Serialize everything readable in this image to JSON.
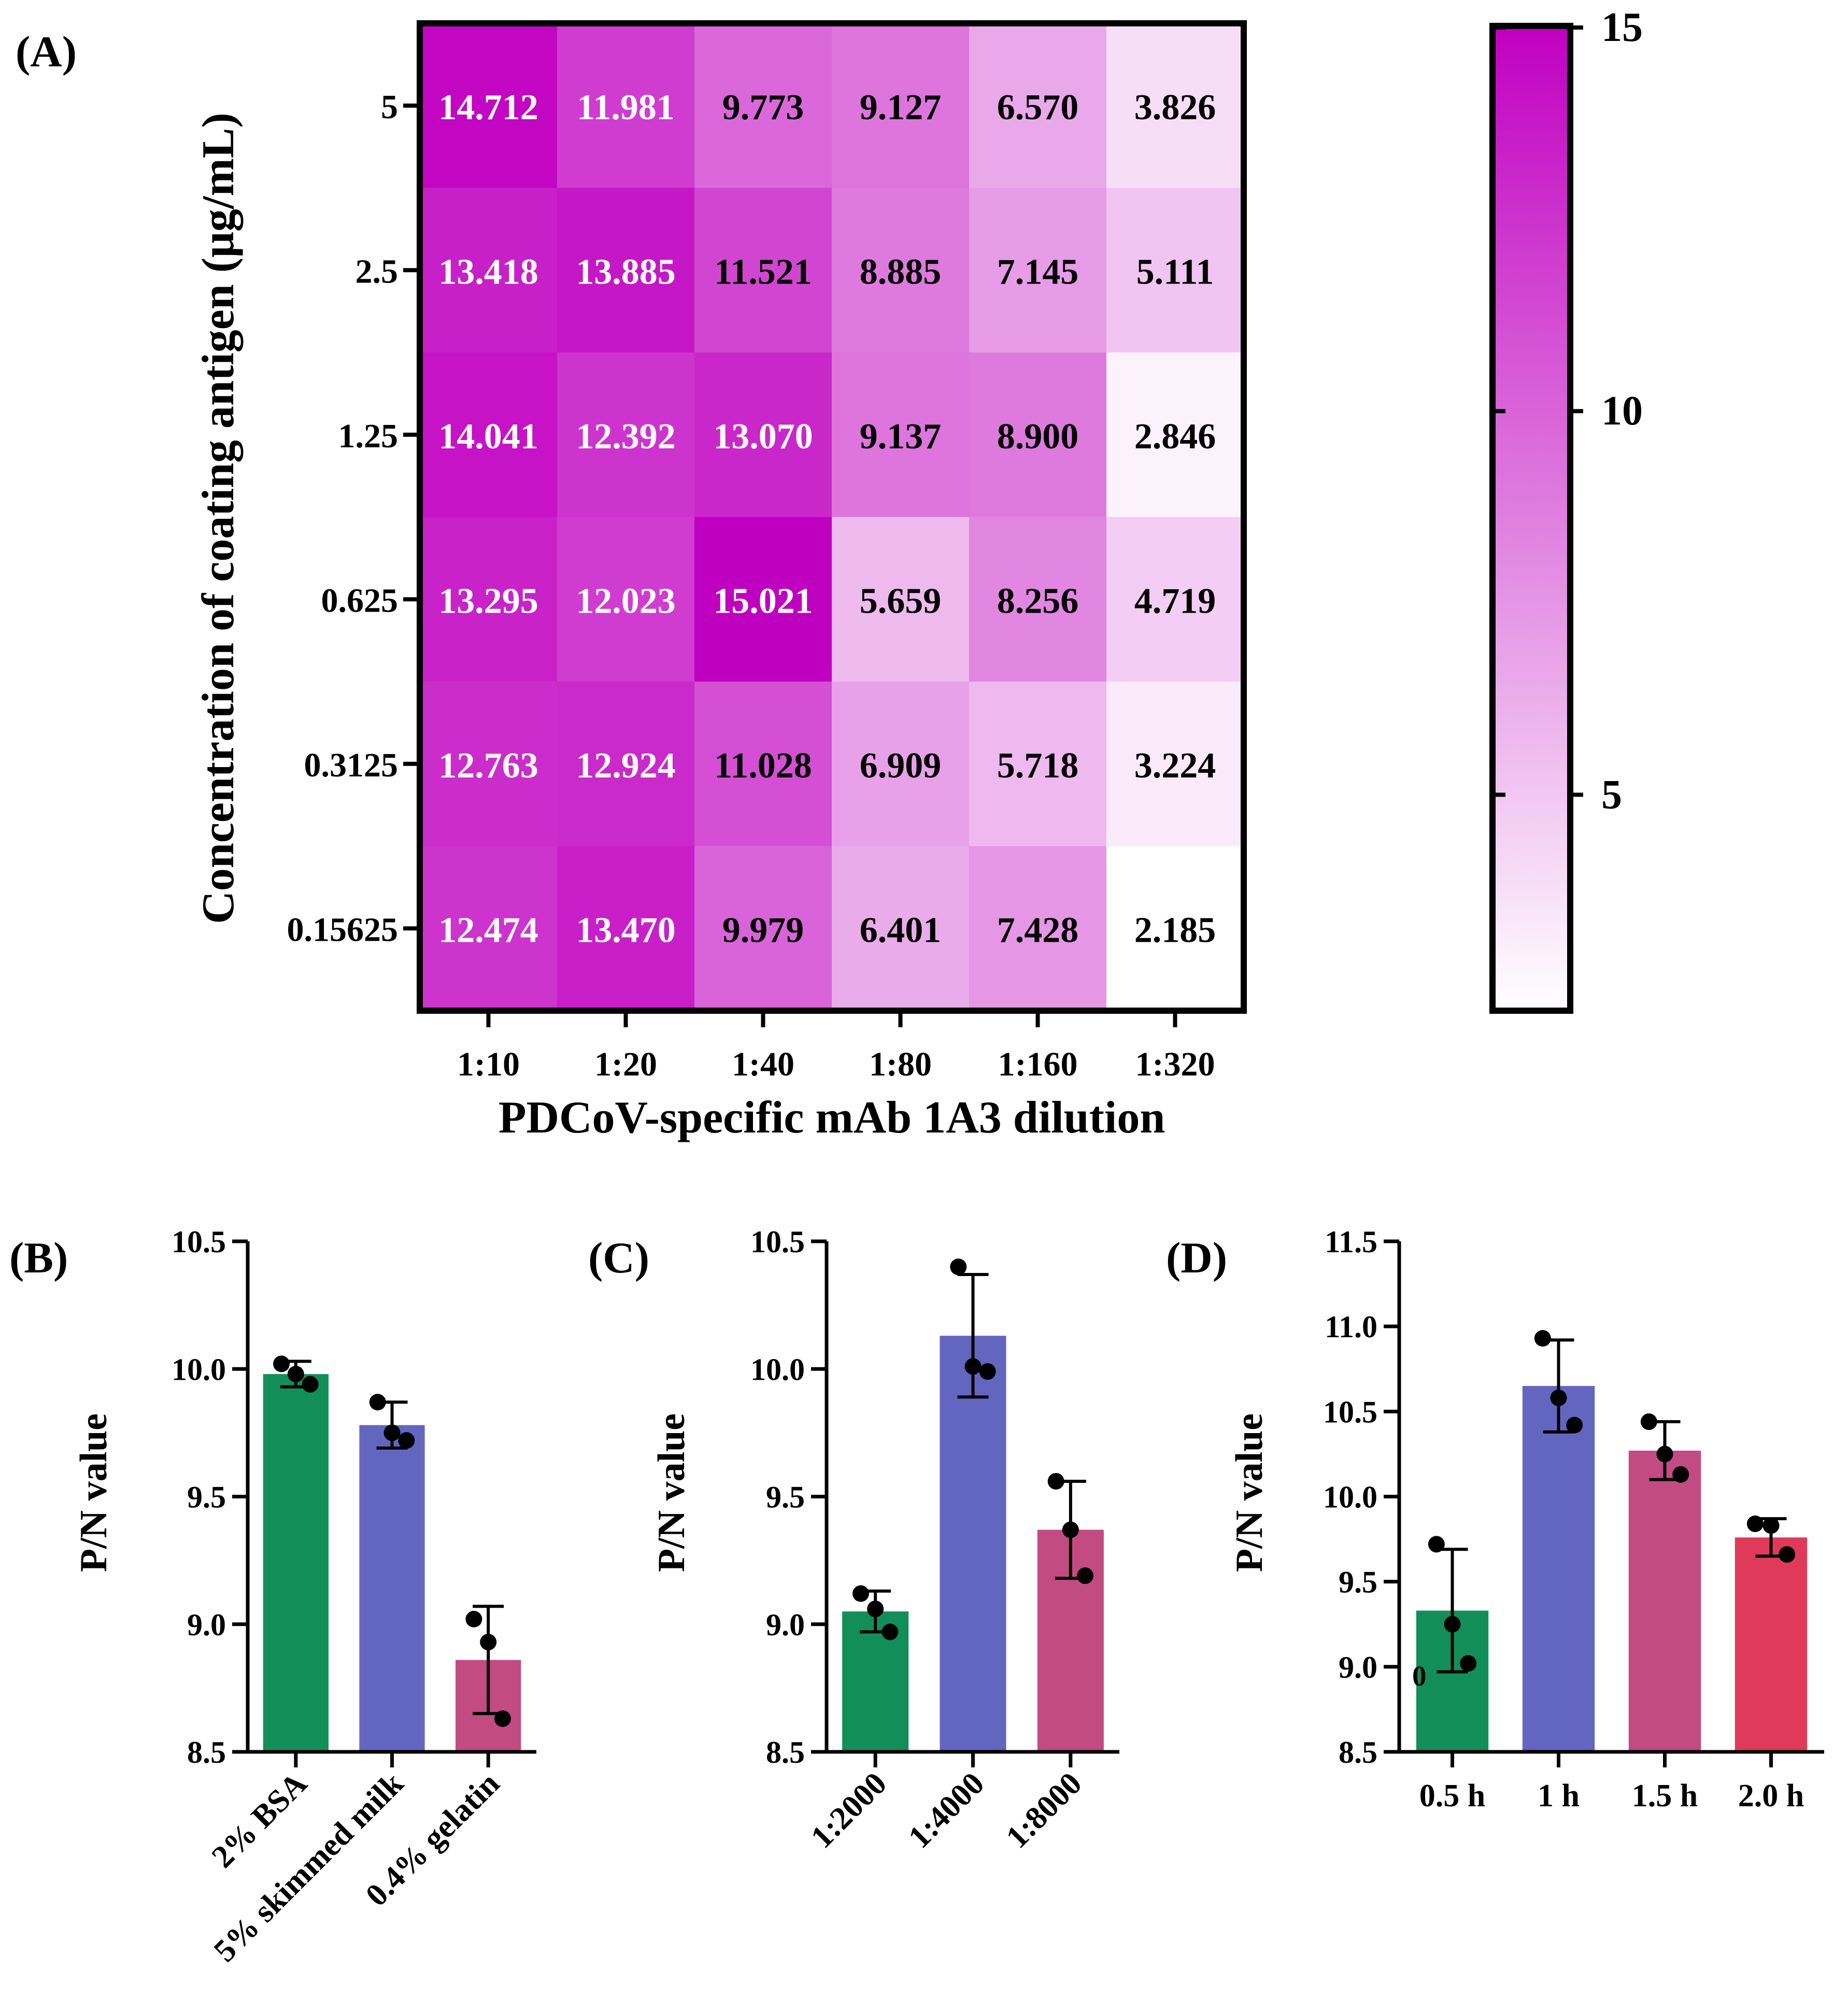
{
  "chart_data": [
    {
      "panel": "(A)",
      "type": "heatmap",
      "title": "",
      "xlabel": "PDCoV-specific mAb 1A3 dilution",
      "ylabel": "Concentration of coating antigen (μg/mL)",
      "x_categories": [
        "1:10",
        "1:20",
        "1:40",
        "1:80",
        "1:160",
        "1:320"
      ],
      "y_categories": [
        "5",
        "2.5",
        "1.25",
        "0.625",
        "0.3125",
        "0.15625"
      ],
      "values": [
        [
          14.712,
          11.981,
          9.773,
          9.127,
          6.57,
          3.826
        ],
        [
          13.418,
          13.885,
          11.521,
          8.885,
          7.145,
          5.111
        ],
        [
          14.041,
          12.392,
          13.07,
          9.137,
          8.9,
          2.846
        ],
        [
          13.295,
          12.023,
          15.021,
          5.659,
          8.256,
          4.719
        ],
        [
          12.763,
          12.924,
          11.028,
          6.909,
          5.718,
          3.224
        ],
        [
          12.474,
          13.47,
          9.979,
          6.401,
          7.428,
          2.185
        ]
      ],
      "value_labels": [
        [
          "14.712",
          "11.981",
          "9.773",
          "9.127",
          "6.570",
          "3.826"
        ],
        [
          "13.418",
          "13.885",
          "11.521",
          "8.885",
          "7.145",
          "5.111"
        ],
        [
          "14.041",
          "12.392",
          "13.070",
          "9.137",
          "8.900",
          "2.846"
        ],
        [
          "13.295",
          "12.023",
          "15.021",
          "5.659",
          "8.256",
          "4.719"
        ],
        [
          "12.763",
          "12.924",
          "11.028",
          "6.909",
          "5.718",
          "3.224"
        ],
        [
          "12.474",
          "13.470",
          "9.979",
          "6.401",
          "7.428",
          "2.185"
        ]
      ],
      "colorbar": {
        "min": 2.185,
        "max": 15.021,
        "ticks": [
          15,
          10,
          5
        ],
        "tick_labels": [
          "15",
          "10",
          "5"
        ],
        "color_low": "#ffffff",
        "color_high": "#c000c0"
      }
    },
    {
      "panel": "(B)",
      "type": "bar",
      "ylabel": "P/N value",
      "ylim": [
        8.5,
        10.5
      ],
      "yticks": [
        8.5,
        9.0,
        9.5,
        10.0,
        10.5
      ],
      "ytick_labels": [
        "8.5",
        "9.0",
        "9.5",
        "10.0",
        "10.5"
      ],
      "categories": [
        "2% BSA",
        "5% skimmed milk",
        "0.4% gelatin"
      ],
      "values": [
        9.98,
        9.78,
        8.86
      ],
      "errors": [
        0.05,
        0.09,
        0.21
      ],
      "points": [
        [
          10.02,
          9.94,
          9.98
        ],
        [
          9.87,
          9.72,
          9.75
        ],
        [
          9.02,
          8.63,
          8.93
        ]
      ],
      "colors": [
        "#128f58",
        "#6366bf",
        "#c24b82"
      ]
    },
    {
      "panel": "(C)",
      "type": "bar",
      "ylabel": "P/N value",
      "ylim": [
        8.5,
        10.5
      ],
      "yticks": [
        8.5,
        9.0,
        9.5,
        10.0,
        10.5
      ],
      "ytick_labels": [
        "8.5",
        "9.0",
        "9.5",
        "10.0",
        "10.5"
      ],
      "categories": [
        "1:2000",
        "1:4000",
        "1:8000"
      ],
      "values": [
        9.05,
        10.13,
        9.37
      ],
      "errors": [
        0.08,
        0.24,
        0.19
      ],
      "points": [
        [
          9.12,
          8.97,
          9.06
        ],
        [
          10.4,
          9.99,
          10.01
        ],
        [
          9.56,
          9.19,
          9.37
        ]
      ],
      "colors": [
        "#128f58",
        "#6366bf",
        "#c24b82"
      ]
    },
    {
      "panel": "(D)",
      "type": "bar",
      "ylabel": "P/N value",
      "ylim": [
        8.5,
        11.5
      ],
      "yticks": [
        8.5,
        9.0,
        9.5,
        10.0,
        10.5,
        11.0,
        11.5
      ],
      "ytick_labels": [
        "8.5",
        "9.0",
        "9.5",
        "10.0",
        "10.5",
        "11.0",
        "11.5"
      ],
      "categories": [
        "0.5 h",
        "1 h",
        "1.5 h",
        "2.0 h"
      ],
      "values": [
        9.33,
        10.65,
        10.27,
        9.76
      ],
      "errors": [
        0.36,
        0.27,
        0.17,
        0.11
      ],
      "points": [
        [
          9.72,
          9.02,
          9.25
        ],
        [
          10.93,
          10.42,
          10.58
        ],
        [
          10.44,
          10.13,
          10.25
        ],
        [
          9.84,
          9.66,
          9.83
        ]
      ],
      "colors": [
        "#128f58",
        "#6366bf",
        "#c24b82",
        "#e03a5a"
      ],
      "annotation": "0"
    }
  ]
}
